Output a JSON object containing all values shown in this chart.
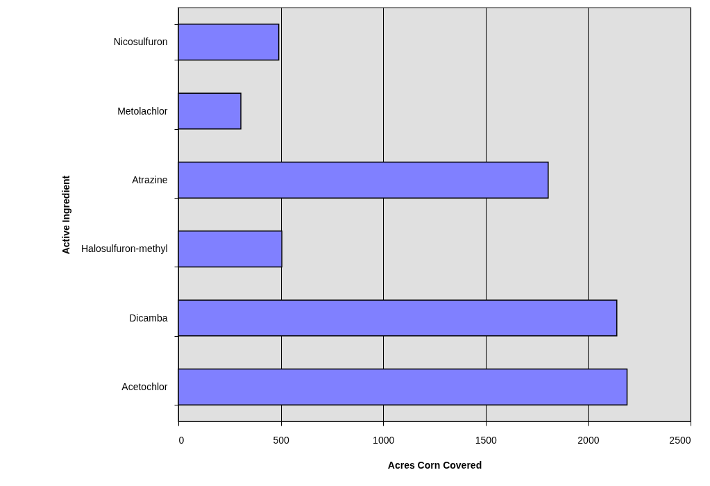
{
  "chart_data": {
    "type": "bar",
    "orientation": "horizontal",
    "xlabel": "Acres Corn Covered",
    "ylabel": "Active Ingredient",
    "categories": [
      "Nicosulfuron",
      "Metolachlor",
      "Atrazine",
      "Halosulfuron-methyl",
      "Dicamba",
      "Acetochlor"
    ],
    "values": [
      490,
      305,
      1805,
      505,
      2140,
      2190
    ],
    "color": "#8080ff",
    "xlim": [
      0,
      2500
    ],
    "xticks": [
      0,
      500,
      1000,
      1500,
      2000,
      2500
    ],
    "grid": "x"
  }
}
